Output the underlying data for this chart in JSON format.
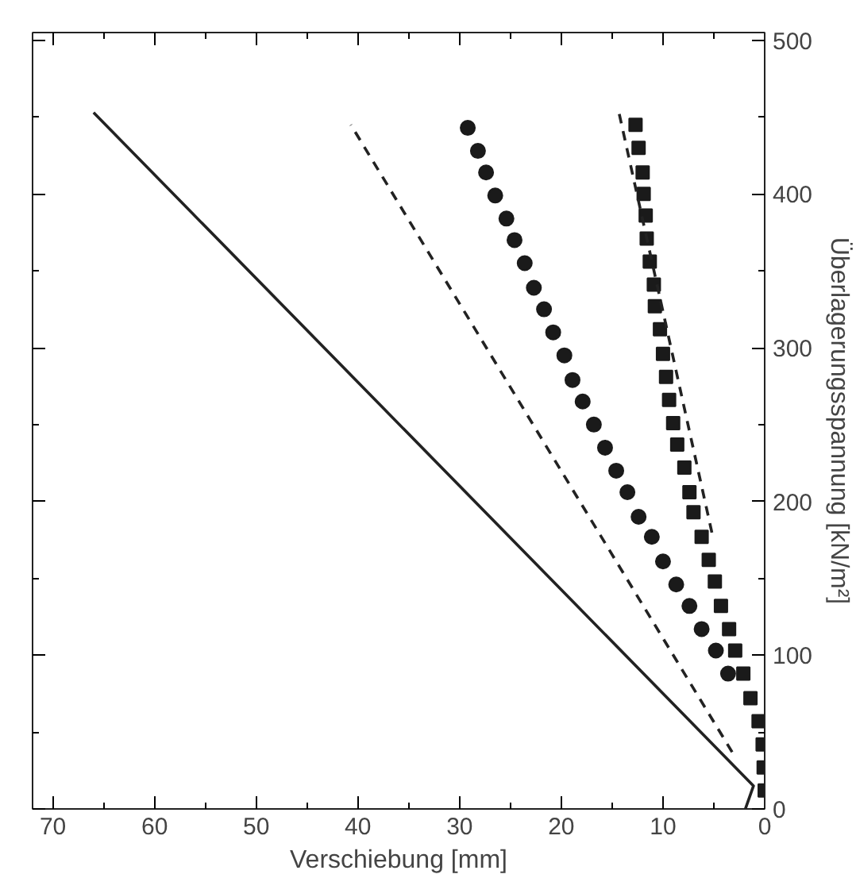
{
  "chart_data": {
    "type": "scatter",
    "xlabel": "Verschiebung [mm]",
    "ylabel": "Überlagerungsspannung [kN/m²]",
    "xlim": [
      72,
      0
    ],
    "ylim": [
      0,
      505
    ],
    "xticks": [
      0,
      10,
      20,
      30,
      40,
      50,
      60,
      70
    ],
    "yticks": [
      0,
      100,
      200,
      300,
      400,
      500
    ],
    "grid": false,
    "series": [
      {
        "type": "line",
        "line_style": "solid",
        "marker": "none",
        "color": "#222222",
        "x": [
          1.9,
          1.1,
          66
        ],
        "values": [
          0,
          15,
          453
        ]
      },
      {
        "type": "line",
        "line_style": "dashed",
        "marker": "none",
        "color": "#222222",
        "x": [
          3.2,
          40.7
        ],
        "values": [
          37,
          445
        ]
      },
      {
        "marker": "circle",
        "color": "#1a1a1a",
        "x": [
          29.2,
          28.2,
          27.4,
          26.5,
          25.4,
          24.6,
          23.6,
          22.7,
          21.7,
          20.8,
          19.7,
          18.9,
          17.9,
          16.8,
          15.7,
          14.6,
          13.5,
          12.4,
          11.1,
          10.0,
          8.7,
          7.4,
          6.2,
          4.8,
          3.6
        ],
        "values": [
          443,
          428,
          414,
          399,
          384,
          370,
          355,
          339,
          325,
          310,
          295,
          279,
          265,
          250,
          235,
          220,
          206,
          190,
          177,
          161,
          146,
          132,
          117,
          103,
          88
        ]
      },
      {
        "marker": "square",
        "color": "#1a1a1a",
        "x": [
          12.7,
          12.4,
          12.0,
          11.9,
          11.7,
          11.6,
          11.3,
          10.9,
          10.8,
          10.3,
          10.0,
          9.7,
          9.4,
          9.0,
          8.6,
          7.9,
          7.4,
          7.0,
          6.2,
          5.5,
          4.9,
          4.3,
          3.5,
          2.9,
          2.1,
          1.4,
          0.6,
          0.2,
          0.1,
          0.0
        ],
        "values": [
          445,
          430,
          414,
          400,
          386,
          371,
          356,
          341,
          327,
          312,
          296,
          281,
          266,
          251,
          237,
          222,
          206,
          193,
          177,
          162,
          148,
          132,
          117,
          103,
          88,
          72,
          57,
          42,
          27,
          12
        ]
      },
      {
        "type": "line",
        "line_style": "dashed",
        "marker": "none",
        "color": "#222222",
        "x": [
          14.3,
          5.1
        ],
        "values": [
          452,
          177
        ]
      }
    ]
  }
}
